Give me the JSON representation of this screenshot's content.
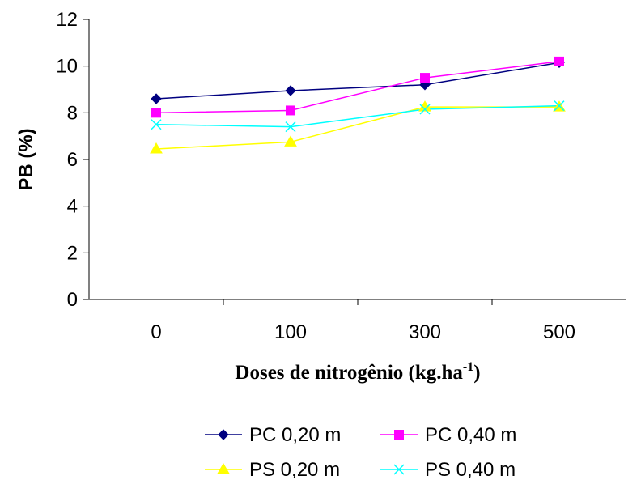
{
  "chart_data": {
    "type": "line",
    "categories": [
      "0",
      "100",
      "300",
      "500"
    ],
    "ylabel": "PB (%)",
    "xlabel": {
      "main": "Doses de nitrogênio (kg.ha",
      "superscript": "-1",
      "close": ")"
    },
    "ylim": [
      0,
      12
    ],
    "yticks": [
      "0",
      "2",
      "4",
      "6",
      "8",
      "10",
      "12"
    ],
    "grid": false,
    "legend_position": "bottom",
    "series": [
      {
        "name": "PC 0,20 m",
        "values": [
          8.6,
          8.95,
          9.2,
          10.15
        ],
        "color": "#000080",
        "marker": "diamond"
      },
      {
        "name": "PC 0,40 m",
        "values": [
          8.0,
          8.1,
          9.5,
          10.2
        ],
        "color": "#FF00FF",
        "marker": "square"
      },
      {
        "name": "PS 0,20 m",
        "values": [
          6.45,
          6.75,
          8.25,
          8.25
        ],
        "color": "#FFFF00",
        "marker": "triangle"
      },
      {
        "name": "PS 0,40 m",
        "values": [
          7.5,
          7.4,
          8.15,
          8.3
        ],
        "color": "#00FFFF",
        "marker": "x"
      }
    ]
  }
}
